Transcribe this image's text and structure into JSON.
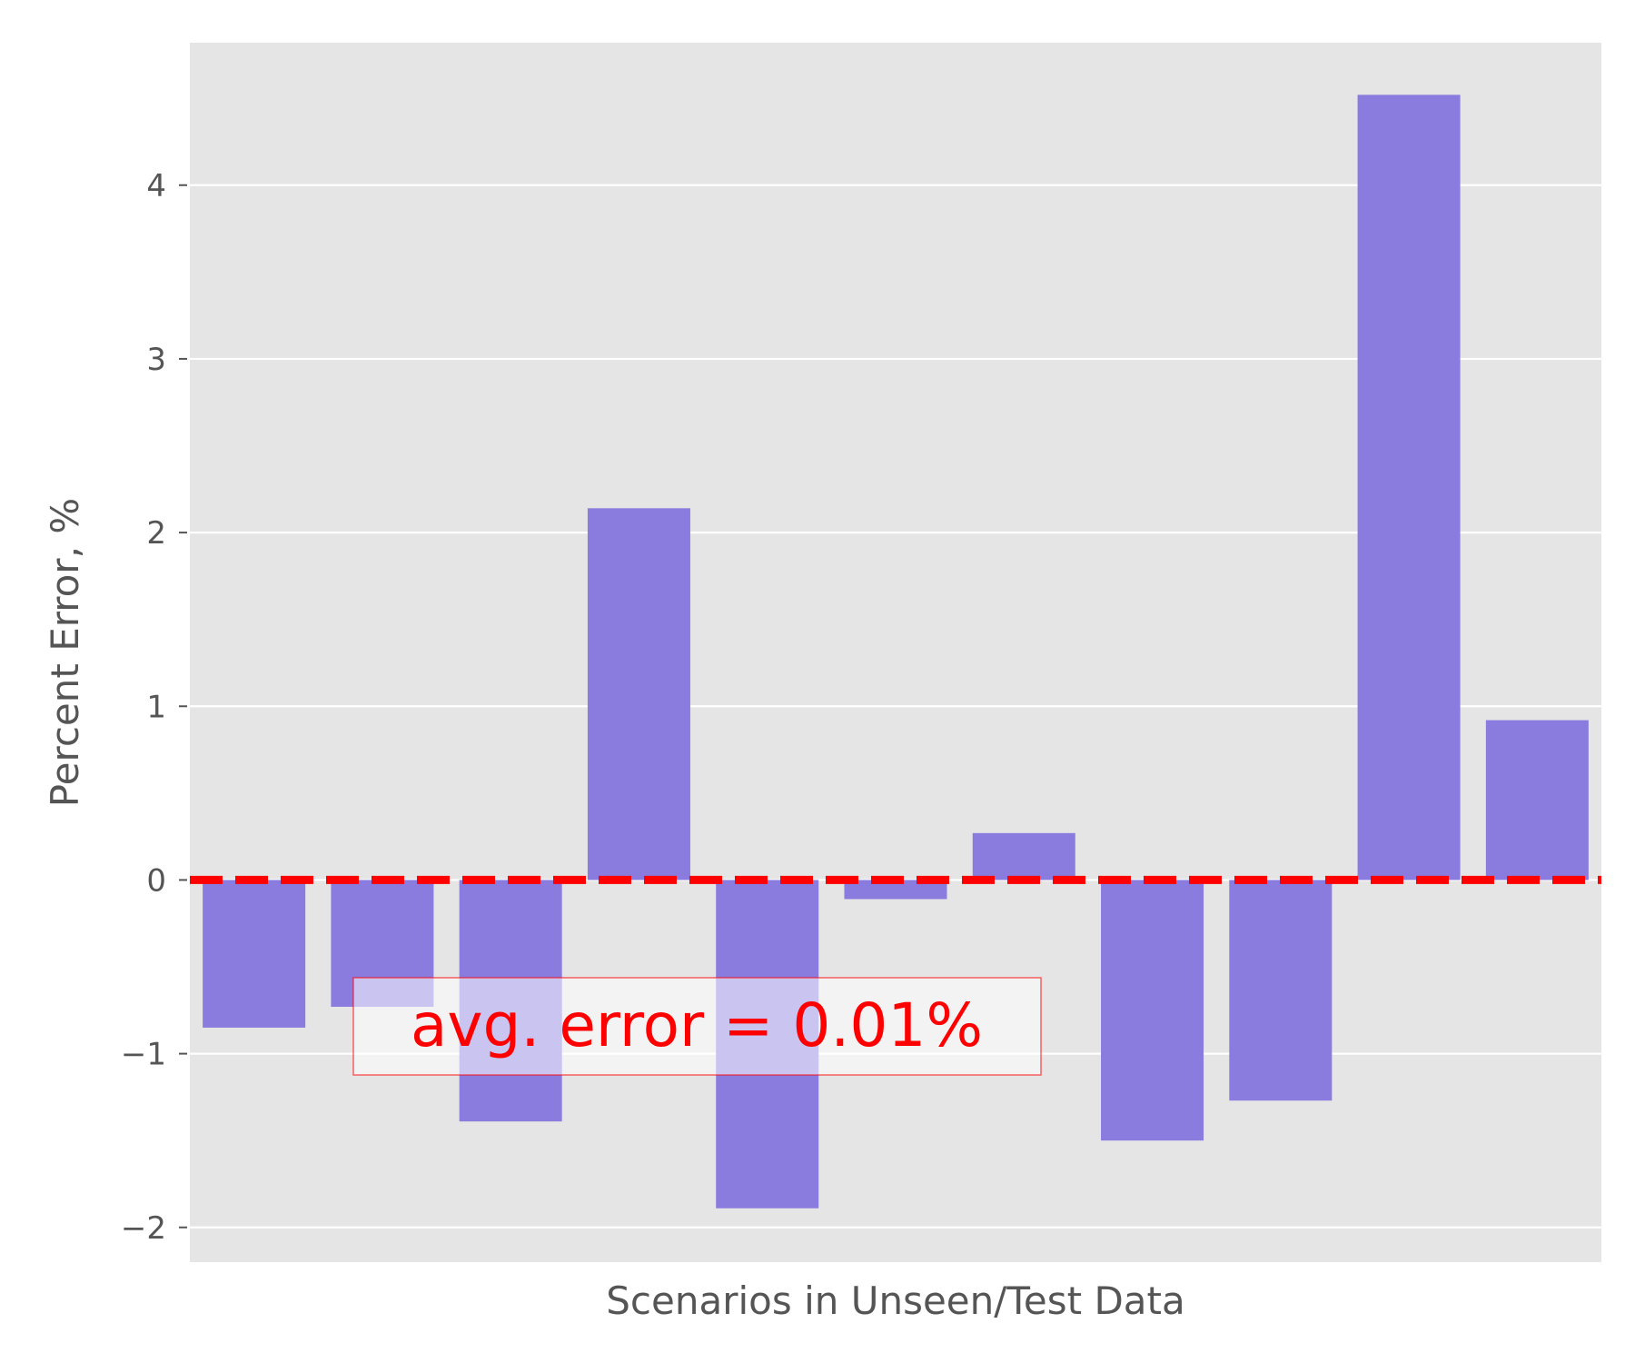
{
  "chart_data": {
    "type": "bar",
    "xlabel": "Scenarios in Unseen/Test Data",
    "ylabel": "Percent Error, %",
    "ylim": [
      -2.2,
      4.82
    ],
    "yticks": [
      -2,
      -1,
      0,
      1,
      2,
      3,
      4
    ],
    "ytick_labels": [
      "−2",
      "−1",
      "0",
      "1",
      "2",
      "3",
      "4"
    ],
    "grid": true,
    "values": [
      -0.85,
      -0.73,
      -1.39,
      2.14,
      -1.89,
      -0.11,
      0.27,
      -1.5,
      -1.27,
      4.52,
      0.92
    ],
    "reference_line": {
      "y": 0.0,
      "style": "dashed",
      "color": "#ff0000"
    },
    "annotation": {
      "text": "avg. error = 0.01%",
      "color": "#ff0000",
      "position": "lower-left"
    },
    "colors": {
      "bar": "#8a7cde",
      "plot_background": "#e5e5e5",
      "grid": "#ffffff"
    }
  }
}
